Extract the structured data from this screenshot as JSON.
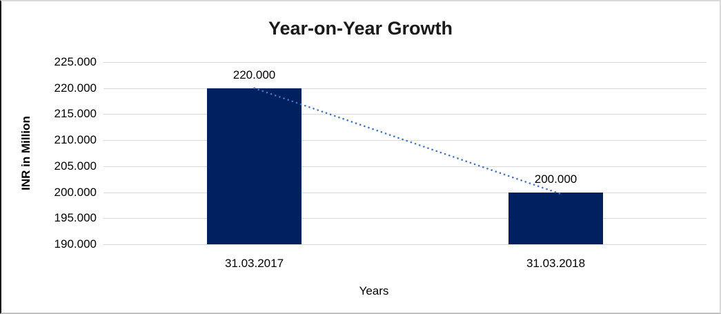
{
  "chart_data": {
    "type": "bar",
    "title": "Year-on-Year Growth",
    "xlabel": "Years",
    "ylabel": "INR in Million",
    "categories": [
      "31.03.2017",
      "31.03.2018"
    ],
    "values": [
      220000,
      200000
    ],
    "data_labels": [
      "220.000",
      "200.000"
    ],
    "y_ticks": [
      {
        "value": 225000,
        "label": "225.000"
      },
      {
        "value": 220000,
        "label": "220.000"
      },
      {
        "value": 215000,
        "label": "215.000"
      },
      {
        "value": 210000,
        "label": "210.000"
      },
      {
        "value": 205000,
        "label": "205.000"
      },
      {
        "value": 200000,
        "label": "200.000"
      },
      {
        "value": 195000,
        "label": "195.000"
      },
      {
        "value": 190000,
        "label": "190.000"
      }
    ],
    "ylim": [
      190000,
      225000
    ],
    "grid": "horizontal",
    "legend": "none",
    "trendline": {
      "style": "dotted",
      "connects": "bar tops",
      "color": "#4472c4"
    },
    "colors": {
      "bar": "#002060",
      "gridline": "#d9d9d9",
      "text": "#000000"
    }
  }
}
